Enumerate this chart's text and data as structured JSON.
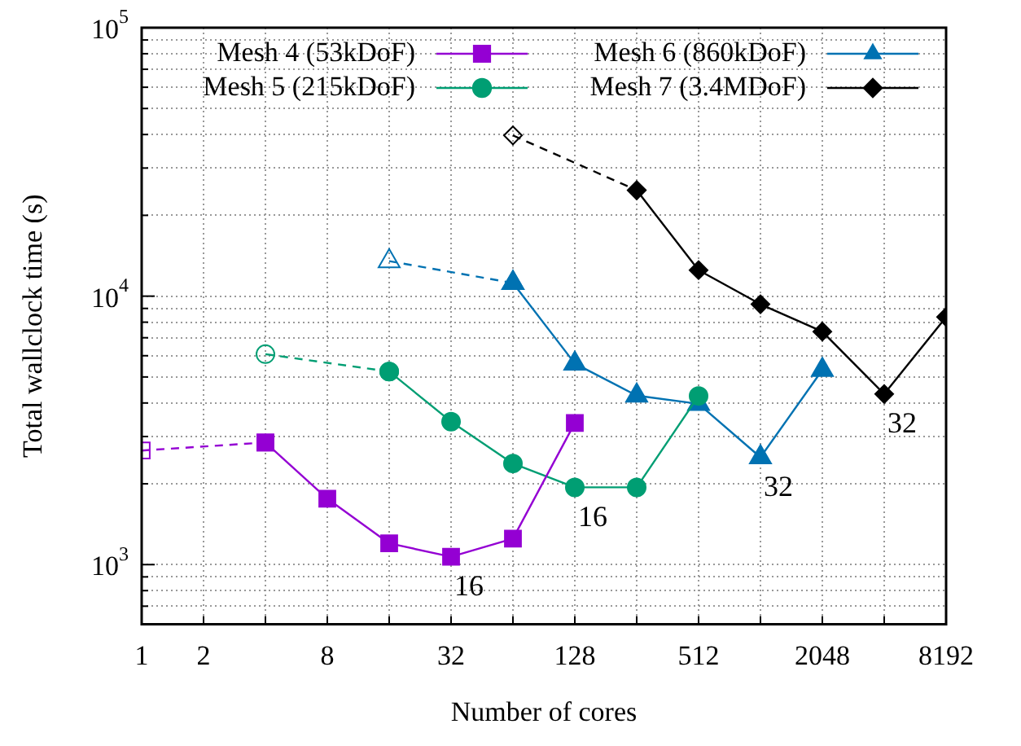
{
  "chart_data": {
    "type": "line",
    "xlabel": "Number of cores",
    "ylabel": "Total wallclock time (s)",
    "log": "xy",
    "grid": true,
    "legend": "top",
    "xlim": [
      1,
      8192
    ],
    "ylim": [
      600,
      100000
    ],
    "xticks": [
      1,
      2,
      {
        "value": 4,
        "label": null
      },
      8,
      {
        "value": 16,
        "label": null
      },
      32,
      {
        "value": 64,
        "label": null
      },
      128,
      {
        "value": 256,
        "label": null
      },
      512,
      {
        "value": 1024,
        "label": null
      },
      2048,
      {
        "value": 4096,
        "label": null
      },
      8192
    ],
    "yticks": [
      {
        "value": 600,
        "label": null
      },
      {
        "value": 700,
        "label": null
      },
      {
        "value": 800,
        "label": null
      },
      {
        "value": 900,
        "label": null
      },
      {
        "value": 1000,
        "label": "10$^{3}$"
      },
      {
        "value": 2000,
        "label": null
      },
      {
        "value": 3000,
        "label": null
      },
      {
        "value": 4000,
        "label": null
      },
      {
        "value": 5000,
        "label": null
      },
      {
        "value": 6000,
        "label": null
      },
      {
        "value": 7000,
        "label": null
      },
      {
        "value": 8000,
        "label": null
      },
      {
        "value": 9000,
        "label": null
      },
      {
        "value": 10000,
        "label": "10$^{4}$"
      },
      {
        "value": 20000,
        "label": null
      },
      {
        "value": 30000,
        "label": null
      },
      {
        "value": 40000,
        "label": null
      },
      {
        "value": 50000,
        "label": null
      },
      {
        "value": 60000,
        "label": null
      },
      {
        "value": 70000,
        "label": null
      },
      {
        "value": 80000,
        "label": null
      },
      {
        "value": 90000,
        "label": null
      },
      {
        "value": 100000,
        "label": "10$^{5}$"
      }
    ],
    "series": [
      {
        "name": "Mesh 4 (53kDoF)",
        "color": "#9400d3",
        "marker": "square",
        "line_style": "solid",
        "x": [
          4,
          8,
          16,
          32,
          64,
          128
        ],
        "values": [
          2850,
          1760,
          1200,
          1070,
          1250,
          3370
        ]
      },
      {
        "name": "Mesh 5 (215kDoF)",
        "color": "#009e73",
        "marker": "circle",
        "line_style": "solid",
        "x": [
          16,
          32,
          64,
          128,
          256,
          512
        ],
        "values": [
          5240,
          3410,
          2380,
          1940,
          1940,
          4250
        ]
      },
      {
        "name": "Mesh 6 (860kDoF)",
        "color": "#0072b2",
        "marker": "triangle",
        "line_style": "solid",
        "x": [
          64,
          128,
          256,
          512,
          1024,
          2048
        ],
        "values": [
          11200,
          5610,
          4260,
          3970,
          2510,
          5310
        ]
      },
      {
        "name": "Mesh 7 (3.4MDoF)",
        "color": "#000000",
        "marker": "diamond",
        "line_style": "solid",
        "x": [
          256,
          512,
          1024,
          2048,
          4096,
          8192
        ],
        "values": [
          24800,
          12500,
          9330,
          7380,
          4320,
          8360
        ]
      },
      {
        "color": "#9400d3",
        "marker": "square",
        "line_style": "dashed",
        "x": [
          1,
          4
        ],
        "values": [
          2660,
          2850
        ]
      },
      {
        "color": "#009e73",
        "marker": "circle",
        "line_style": "dashed",
        "x": [
          4,
          16
        ],
        "values": [
          6080,
          5240
        ]
      },
      {
        "color": "#0072b2",
        "marker": "triangle",
        "line_style": "dashed",
        "x": [
          16,
          64
        ],
        "values": [
          13500,
          11200
        ]
      },
      {
        "color": "#000000",
        "marker": "diamond",
        "line_style": "dashed",
        "x": [
          64,
          256
        ],
        "values": [
          39700,
          24800
        ]
      }
    ],
    "annotations": [
      {
        "text": "16",
        "x": 32,
        "y": 1070
      },
      {
        "text": "16",
        "x": 128,
        "y": 1940
      },
      {
        "text": "32",
        "x": 1024,
        "y": 2510
      },
      {
        "text": "32",
        "x": 4096,
        "y": 4320
      }
    ]
  }
}
